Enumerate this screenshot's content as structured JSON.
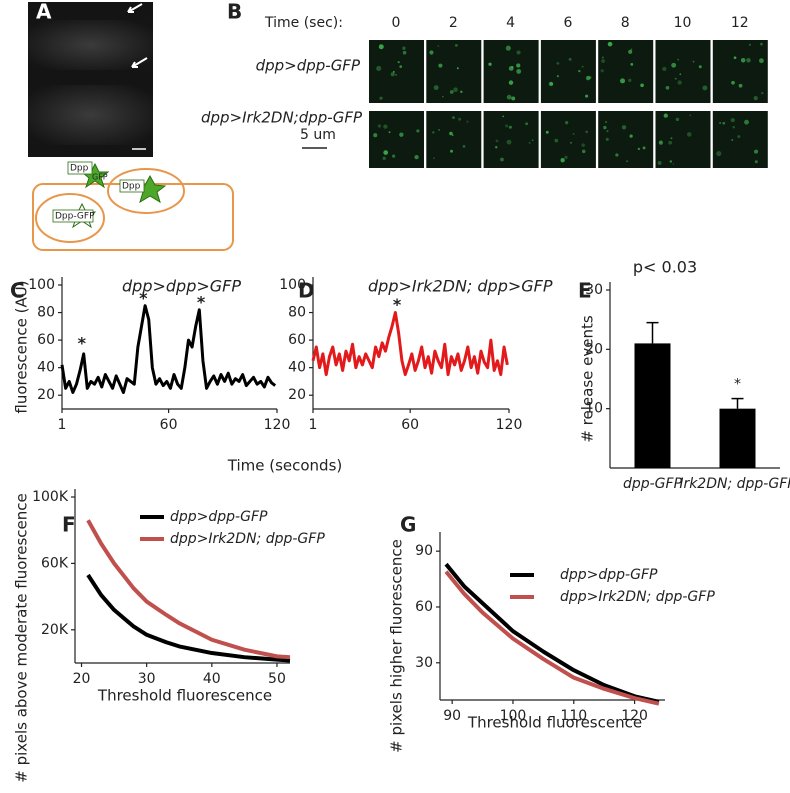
{
  "panel_a": {
    "label": "A",
    "diagram_labels": [
      "Dpp",
      "GFP",
      "Dpp",
      "Dpp-GFP"
    ]
  },
  "panel_b": {
    "label": "B",
    "time_label": "Time (sec):",
    "times": [
      0,
      2,
      4,
      6,
      8,
      10,
      12
    ],
    "rows": [
      "dpp>dpp-GFP",
      "dpp>Irk2DN;dpp-GFP"
    ],
    "scale_bar": "5 um"
  },
  "chart_data": [
    {
      "type": "line",
      "panel_label": "C",
      "title": "dpp>dpp>GFP",
      "ylabel": "fluorescence (AU)",
      "xlabel": "Time (seconds)",
      "x": [
        1,
        3,
        5,
        7,
        9,
        11,
        13,
        15,
        17,
        19,
        21,
        23,
        25,
        27,
        29,
        31,
        33,
        35,
        37,
        39,
        41,
        43,
        45,
        47,
        49,
        51,
        53,
        55,
        57,
        59,
        61,
        63,
        65,
        67,
        69,
        71,
        73,
        75,
        77,
        79,
        81,
        83,
        85,
        87,
        89,
        91,
        93,
        95,
        97,
        99,
        101,
        103,
        105,
        107,
        109,
        111,
        113,
        115,
        117,
        119
      ],
      "series": [
        {
          "color": "#000000",
          "values": [
            42,
            25,
            30,
            22,
            28,
            38,
            50,
            25,
            30,
            28,
            33,
            26,
            35,
            30,
            25,
            34,
            28,
            22,
            32,
            30,
            28,
            55,
            70,
            85,
            75,
            40,
            28,
            32,
            27,
            30,
            25,
            35,
            28,
            25,
            40,
            60,
            55,
            70,
            82,
            45,
            25,
            30,
            34,
            28,
            35,
            30,
            36,
            28,
            32,
            30,
            35,
            27,
            30,
            33,
            28,
            30,
            26,
            33,
            29,
            27
          ]
        }
      ],
      "xlim": [
        1,
        120
      ],
      "xticks": [
        1,
        60,
        120
      ],
      "ylim": [
        10,
        100
      ],
      "yticks": [
        20,
        40,
        60,
        80,
        100
      ],
      "annotations": [
        {
          "text": "*",
          "x": 12,
          "y": 57
        },
        {
          "text": "*",
          "x": 46,
          "y": 90
        },
        {
          "text": "*",
          "x": 78,
          "y": 87
        }
      ]
    },
    {
      "type": "line",
      "panel_label": "D",
      "title": "dpp>Irk2DN; dpp>GFP",
      "x": [
        1,
        3,
        5,
        7,
        9,
        11,
        13,
        15,
        17,
        19,
        21,
        23,
        25,
        27,
        29,
        31,
        33,
        35,
        37,
        39,
        41,
        43,
        45,
        47,
        49,
        51,
        53,
        55,
        57,
        59,
        61,
        63,
        65,
        67,
        69,
        71,
        73,
        75,
        77,
        79,
        81,
        83,
        85,
        87,
        89,
        91,
        93,
        95,
        97,
        99,
        101,
        103,
        105,
        107,
        109,
        111,
        113,
        115,
        117,
        119
      ],
      "series": [
        {
          "color": "#e31a1c",
          "values": [
            45,
            55,
            40,
            50,
            35,
            48,
            55,
            42,
            50,
            38,
            52,
            45,
            57,
            40,
            48,
            42,
            50,
            45,
            40,
            55,
            48,
            58,
            52,
            62,
            70,
            80,
            65,
            45,
            35,
            42,
            50,
            38,
            45,
            55,
            40,
            48,
            36,
            52,
            45,
            40,
            57,
            35,
            48,
            42,
            50,
            38,
            45,
            55,
            40,
            48,
            36,
            52,
            44,
            40,
            60,
            38,
            45,
            35,
            55,
            42
          ]
        }
      ],
      "xlim": [
        1,
        120
      ],
      "xticks": [
        1,
        60,
        120
      ],
      "ylim": [
        10,
        100
      ],
      "yticks": [
        20,
        40,
        60,
        80,
        100
      ],
      "annotations": [
        {
          "text": "*",
          "x": 52,
          "y": 85
        }
      ]
    },
    {
      "type": "bar",
      "panel_label": "E",
      "title": "p< 0.03",
      "ylabel": "# release events",
      "categories": [
        "dpp-GFP",
        "Irk2DN; dpp-GFP"
      ],
      "values": [
        21,
        10
      ],
      "errors": [
        3.5,
        1.7
      ],
      "color": "#000000",
      "ylim": [
        0,
        30
      ],
      "yticks": [
        10,
        20,
        30
      ],
      "annotations": [
        {
          "text": "*",
          "category": 1
        }
      ]
    },
    {
      "type": "line",
      "panel_label": "F",
      "ylabel": "# pixels above moderate fluorescence",
      "xlabel": "Threshold fluorescence",
      "x": [
        21,
        23,
        25,
        28,
        30,
        33,
        35,
        40,
        45,
        50,
        52
      ],
      "series": [
        {
          "name": "dpp>dpp-GFP",
          "color": "#000000",
          "values": [
            53000,
            41000,
            32000,
            22000,
            17000,
            12500,
            10000,
            6000,
            3500,
            2000,
            1500
          ]
        },
        {
          "name": "dpp>Irk2DN; dpp-GFP",
          "color": "#c0504d",
          "values": [
            86000,
            72000,
            60000,
            45000,
            37000,
            29000,
            24000,
            14000,
            8000,
            4000,
            3500
          ]
        }
      ],
      "xlim": [
        19,
        52
      ],
      "xticks": [
        20,
        30,
        40,
        50
      ],
      "ylim": [
        0,
        100000
      ],
      "yticks": [
        {
          "value": 20000,
          "label": "20K"
        },
        {
          "value": 60000,
          "label": "60K"
        },
        {
          "value": 100000,
          "label": "100K"
        }
      ]
    },
    {
      "type": "line",
      "panel_label": "G",
      "ylabel": "# pixels higher fluorescence",
      "xlabel": "Threshold fluorescence",
      "x": [
        89,
        92,
        95,
        100,
        105,
        110,
        115,
        120,
        124
      ],
      "series": [
        {
          "name": "dpp>dpp-GFP",
          "color": "#000000",
          "values": [
            83,
            71,
            62,
            47,
            36,
            26,
            18,
            12,
            9
          ]
        },
        {
          "name": "dpp>Irk2DN; dpp-GFP",
          "color": "#c0504d",
          "values": [
            79,
            67,
            57,
            43,
            32,
            22,
            16,
            11,
            8
          ]
        }
      ],
      "xlim": [
        88,
        125
      ],
      "xticks": [
        90,
        100,
        110,
        120
      ],
      "ylim": [
        10,
        96
      ],
      "yticks": [
        30,
        60,
        90
      ]
    }
  ]
}
